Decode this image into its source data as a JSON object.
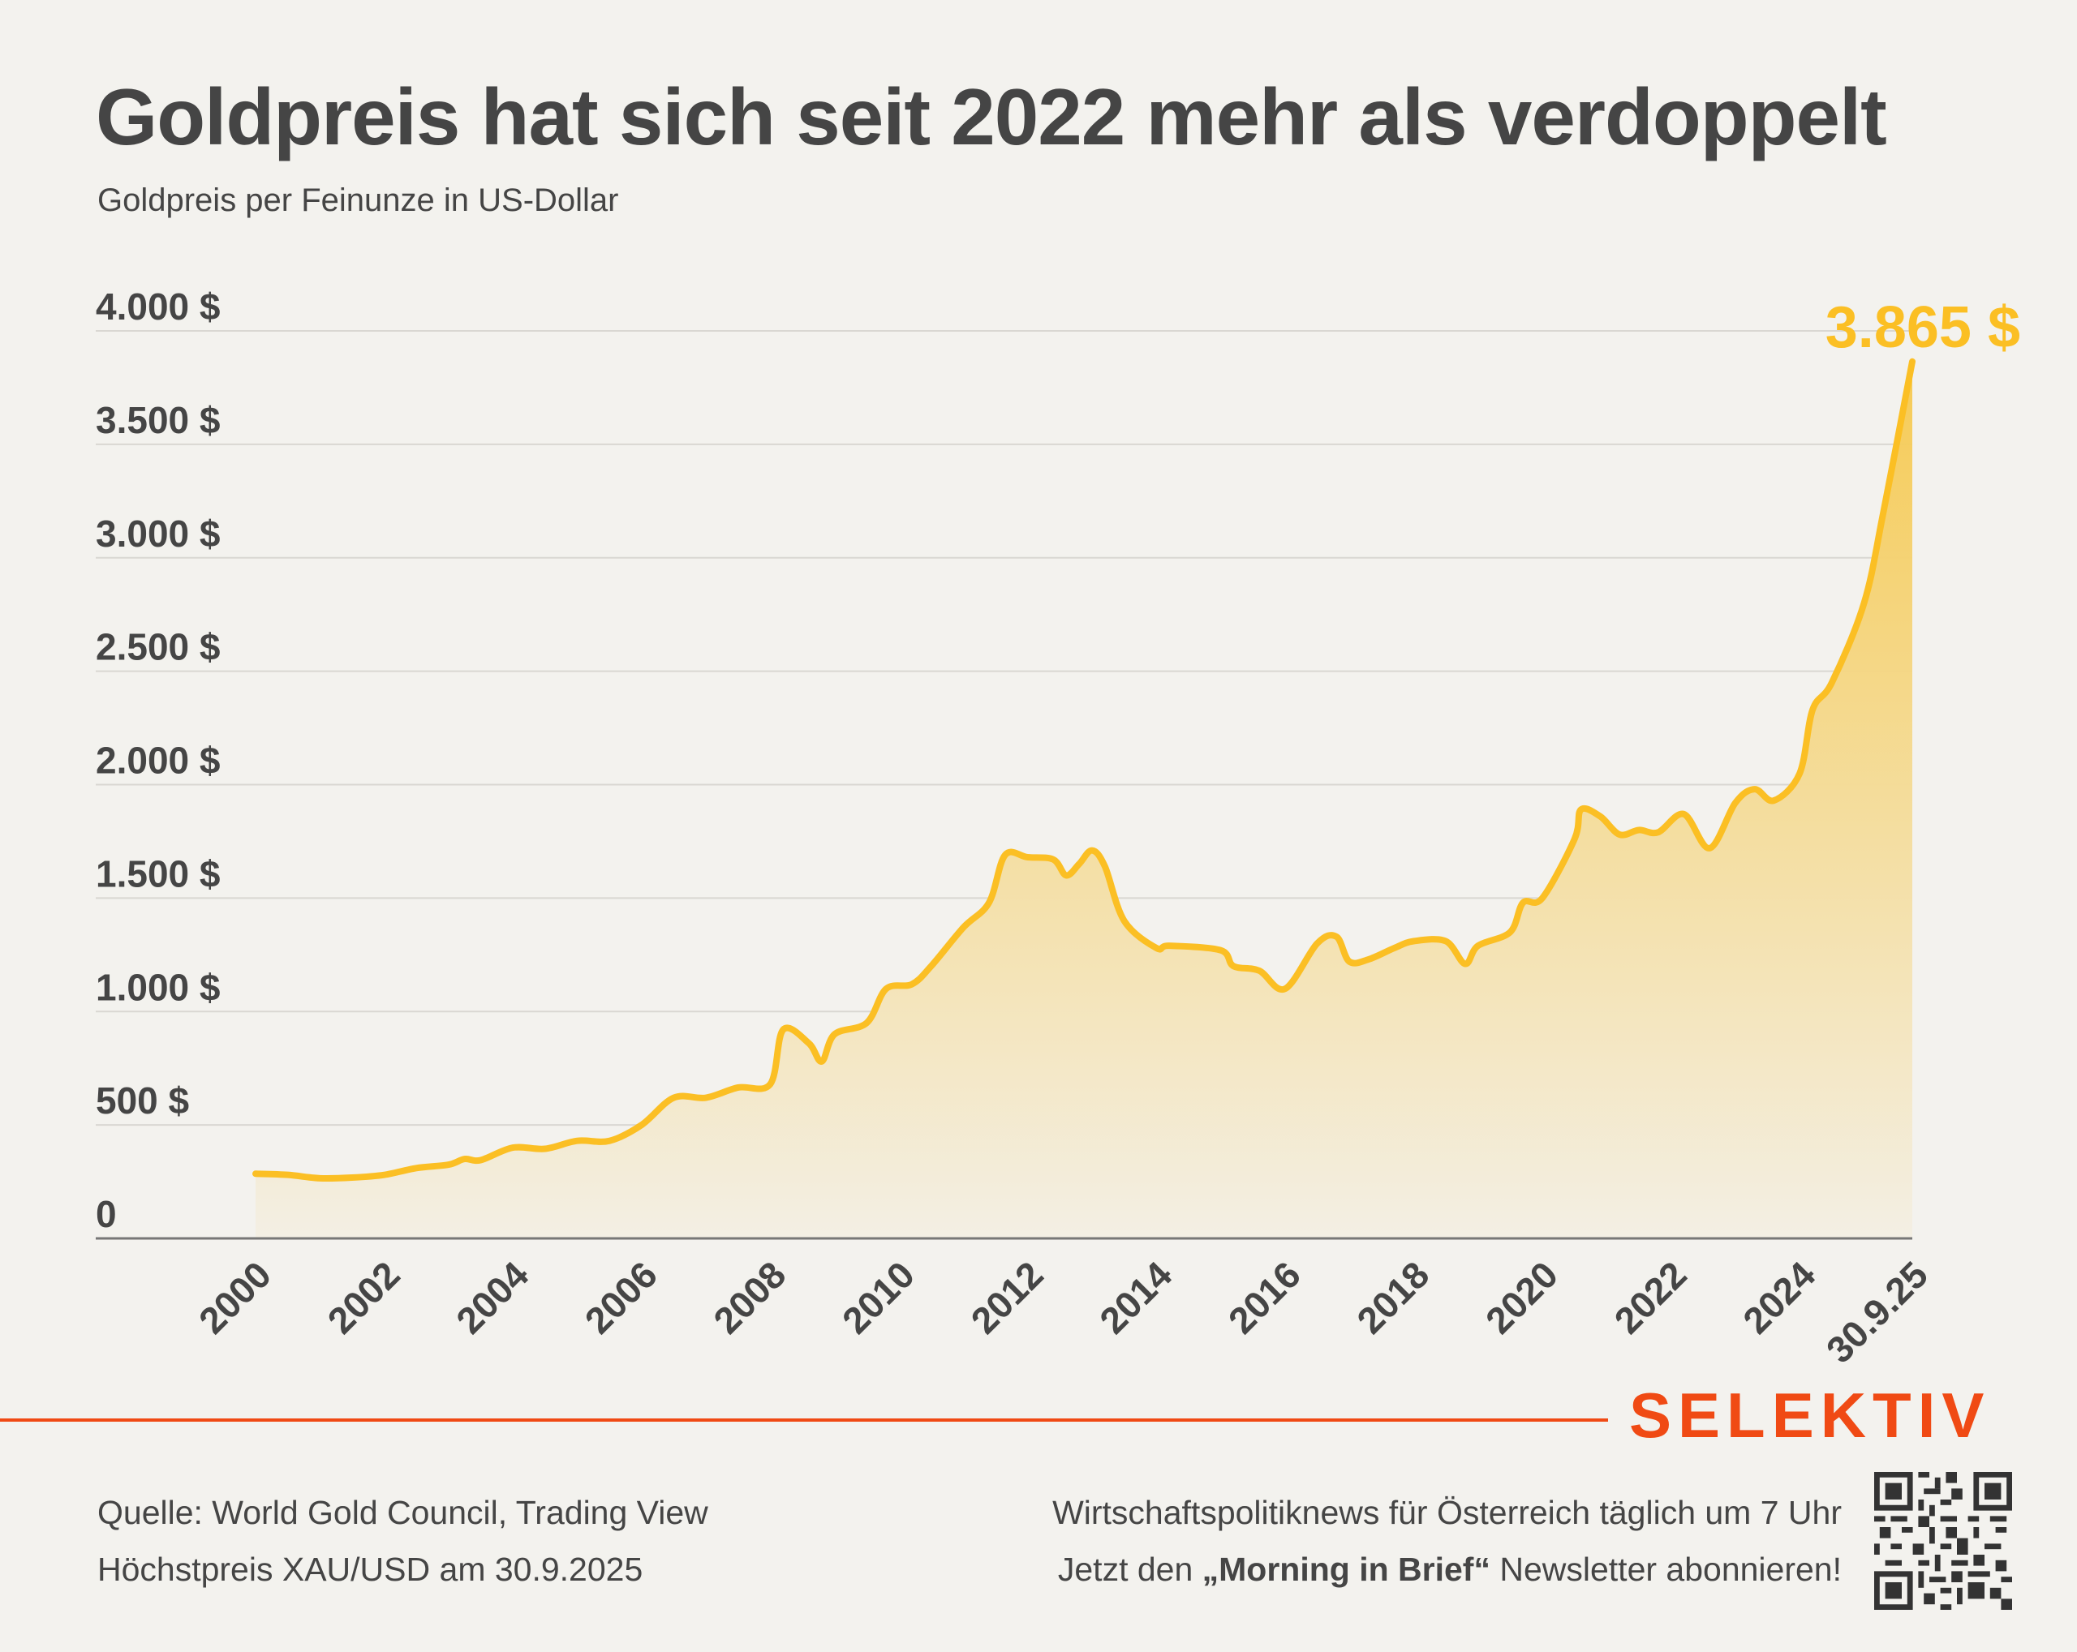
{
  "header": {
    "title": "Goldpreis hat sich seit 2022 mehr als verdoppelt",
    "subtitle": "Goldpreis per Feinunze in US-Dollar"
  },
  "colors": {
    "line": "#fbbf24",
    "fill_top": "#f6c94e",
    "fill_bottom": "#f3efe4",
    "text": "#454545",
    "grid": "#d9d7d2",
    "brand": "#f04a14",
    "background": "#f3f2ee"
  },
  "chart_data": {
    "type": "area",
    "title": "Goldpreis hat sich seit 2022 mehr als verdoppelt",
    "subtitle": "Goldpreis per Feinunze in US-Dollar",
    "xlabel": "",
    "ylabel": "",
    "xlim": [
      2000,
      2025.75
    ],
    "ylim": [
      0,
      4000
    ],
    "grid": true,
    "y_ticks": [
      0,
      500,
      1000,
      1500,
      2000,
      2500,
      3000,
      3500,
      4000
    ],
    "y_tick_labels": [
      "0",
      "500 $",
      "1.000 $",
      "1.500 $",
      "2.000 $",
      "2.500 $",
      "3.000 $",
      "3.500 $",
      "4.000 $"
    ],
    "x_ticks": [
      2000,
      2002,
      2004,
      2006,
      2008,
      2010,
      2012,
      2014,
      2016,
      2018,
      2020,
      2022,
      2024,
      2025.75
    ],
    "x_tick_labels": [
      "2000",
      "2002",
      "2004",
      "2006",
      "2008",
      "2010",
      "2012",
      "2014",
      "2016",
      "2018",
      "2020",
      "2022",
      "2024",
      "30.9.25"
    ],
    "annotation": "3.865 $",
    "series": [
      {
        "name": "Goldpreis",
        "x": [
          2000,
          2000.5,
          2001,
          2001.5,
          2002,
          2002.5,
          2003,
          2003.25,
          2003.5,
          2004,
          2004.5,
          2005,
          2005.5,
          2006,
          2006.5,
          2007,
          2007.5,
          2008,
          2008.2,
          2008.6,
          2008.8,
          2009,
          2009.5,
          2009.8,
          2010.2,
          2010.5,
          2011,
          2011.4,
          2011.65,
          2012,
          2012.4,
          2012.6,
          2012.8,
          2013,
          2013.2,
          2013.5,
          2014,
          2014.2,
          2015,
          2015.2,
          2015.6,
          2016,
          2016.5,
          2016.8,
          2017,
          2017.3,
          2017.7,
          2018,
          2018.5,
          2018.8,
          2019,
          2019.5,
          2019.7,
          2020,
          2020.5,
          2020.6,
          2020.9,
          2021.2,
          2021.5,
          2021.8,
          2022.2,
          2022.6,
          2023,
          2023.3,
          2023.6,
          2024,
          2024.2,
          2024.5,
          2025,
          2025.3,
          2025.75
        ],
        "values": [
          285,
          280,
          265,
          268,
          280,
          310,
          325,
          350,
          345,
          400,
          395,
          430,
          430,
          500,
          620,
          620,
          665,
          680,
          920,
          860,
          780,
          900,
          950,
          1100,
          1120,
          1200,
          1370,
          1480,
          1690,
          1680,
          1670,
          1600,
          1650,
          1710,
          1640,
          1400,
          1280,
          1290,
          1270,
          1200,
          1180,
          1100,
          1300,
          1330,
          1220,
          1230,
          1280,
          1310,
          1310,
          1210,
          1290,
          1350,
          1480,
          1500,
          1760,
          1890,
          1860,
          1780,
          1800,
          1790,
          1870,
          1720,
          1920,
          1980,
          1930,
          2050,
          2330,
          2450,
          2800,
          3200,
          3865
        ]
      }
    ]
  },
  "footer": {
    "logo": "SELEKTIV",
    "source": "Quelle: World Gold Council, Trading View",
    "note": "Höchstpreis XAU/USD am 30.9.2025",
    "promo_line1": "Wirtschaftspolitiknews für Österreich täglich um 7 Uhr",
    "promo_line2_pre": "Jetzt den ",
    "promo_line2_bold": "„Morning in Brief“",
    "promo_line2_post": " Newsletter abonnieren!"
  }
}
